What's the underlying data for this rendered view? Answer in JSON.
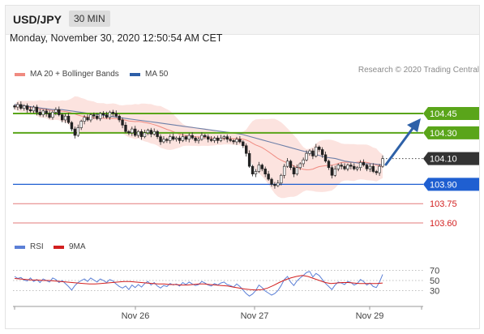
{
  "header": {
    "symbol": "USD/JPY",
    "timeframe": "30 MIN"
  },
  "timestamp": "Monday, November 30, 2020 12:50:54 AM CET",
  "legend": [
    {
      "label": "MA 20 + Bollinger Bands",
      "color": "#f08a80"
    },
    {
      "label": "MA 50",
      "color": "#2d5fa8"
    }
  ],
  "credit": "Research © 2020 Trading Central",
  "colors": {
    "support_resistance": "#5aa51a",
    "current_price": "#333333",
    "pivot": "#1f5fd1",
    "target": "#d21f1f",
    "arrow": "#2e61a8",
    "rsi": "#5b7fd6",
    "ma9": "#d21f1f"
  },
  "chart_data": [
    {
      "type": "line",
      "subtype": "candlestick",
      "x_labels": [
        "Nov 26",
        "Nov 27",
        "Nov 29"
      ],
      "price_levels": [
        {
          "value": "104.45",
          "kind": "resistance"
        },
        {
          "value": "104.30",
          "kind": "resistance"
        },
        {
          "value": "104.10",
          "kind": "current"
        },
        {
          "value": "103.90",
          "kind": "pivot"
        },
        {
          "value": "103.75",
          "kind": "support"
        },
        {
          "value": "103.60",
          "kind": "support"
        }
      ],
      "ylim": [
        103.55,
        104.62
      ],
      "series": [
        {
          "name": "Price",
          "values": [
            104.5,
            104.52,
            104.49,
            104.51,
            104.48,
            104.47,
            104.5,
            104.46,
            104.44,
            104.47,
            104.45,
            104.42,
            104.46,
            104.48,
            104.44,
            104.4,
            104.43,
            104.38,
            104.33,
            104.28,
            104.34,
            104.39,
            104.42,
            104.4,
            104.44,
            104.43,
            104.41,
            104.45,
            104.44,
            104.42,
            104.46,
            104.45,
            104.43,
            104.4,
            104.36,
            104.31,
            104.3,
            104.33,
            104.28,
            104.31,
            104.27,
            104.3,
            104.32,
            104.29,
            104.31,
            104.27,
            104.23,
            104.25,
            104.24,
            104.27,
            104.25,
            104.26,
            104.24,
            104.27,
            104.25,
            104.28,
            104.26,
            104.24,
            104.25,
            104.28,
            104.27,
            104.25,
            104.24,
            104.26,
            104.24,
            104.26,
            104.27,
            104.25,
            104.24,
            104.23,
            104.25,
            104.23,
            104.2,
            104.14,
            104.04,
            103.98,
            104.0,
            104.05,
            104.02,
            103.98,
            103.94,
            103.9,
            103.89,
            103.91,
            103.97,
            104.04,
            104.08,
            104.03,
            103.98,
            104.03,
            104.06,
            104.09,
            104.14,
            104.16,
            104.12,
            104.19,
            104.17,
            104.13,
            104.08,
            104.03,
            103.97,
            104.02,
            104.05,
            104.04,
            104.02,
            104.05,
            104.04,
            104.02,
            104.03,
            104.07,
            104.05,
            104.02,
            104.04,
            104.0,
            103.99,
            104.04,
            104.1
          ]
        },
        {
          "name": "MA 50",
          "values": [
            104.52,
            104.51,
            104.5,
            104.49,
            104.48,
            104.48,
            104.47,
            104.46,
            104.45,
            104.44,
            104.43,
            104.42,
            104.41,
            104.4,
            104.39,
            104.38,
            104.37,
            104.36,
            104.35,
            104.34,
            104.33,
            104.32,
            104.31,
            104.3,
            104.29,
            104.27,
            104.25,
            104.23,
            104.21,
            104.19,
            104.17,
            104.15,
            104.13,
            104.11,
            104.1,
            104.08,
            104.07,
            104.06,
            104.06,
            104.05
          ]
        }
      ]
    },
    {
      "type": "line",
      "title": "RSI",
      "ylim": [
        0,
        100
      ],
      "y_ticks": [
        "70",
        "50",
        "30"
      ],
      "series": [
        {
          "name": "RSI",
          "values": [
            58,
            54,
            56,
            51,
            49,
            55,
            48,
            52,
            46,
            53,
            50,
            47,
            55,
            52,
            46,
            50,
            44,
            38,
            31,
            40,
            46,
            50,
            53,
            48,
            55,
            51,
            47,
            53,
            50,
            46,
            52,
            49,
            43,
            38,
            35,
            39,
            32,
            41,
            36,
            42,
            37,
            44,
            48,
            41,
            46,
            39,
            35,
            40,
            38,
            44,
            41,
            43,
            39,
            46,
            42,
            47,
            43,
            40,
            42,
            48,
            45,
            41,
            39,
            44,
            41,
            45,
            47,
            42,
            40,
            37,
            43,
            38,
            31,
            24,
            19,
            23,
            30,
            41,
            36,
            29,
            25,
            21,
            24,
            30,
            40,
            52,
            58,
            47,
            40,
            49,
            55,
            60,
            66,
            68,
            57,
            64,
            60,
            52,
            44,
            38,
            32,
            41,
            47,
            45,
            42,
            48,
            46,
            41,
            44,
            52,
            48,
            41,
            45,
            38,
            36,
            47,
            62
          ]
        },
        {
          "name": "9MA",
          "values": [
            54,
            53,
            52,
            51,
            51,
            50,
            50,
            49,
            48,
            47,
            46,
            45,
            44,
            43,
            43,
            44,
            45,
            46,
            47,
            48,
            48,
            47,
            46,
            45,
            44,
            43,
            43,
            42,
            42,
            41,
            41,
            42,
            43,
            43,
            42,
            41,
            40,
            39,
            37,
            35,
            33,
            32,
            31,
            32,
            35,
            40,
            46,
            51,
            55,
            58,
            60,
            58,
            54,
            50,
            46,
            44,
            45,
            46,
            46,
            45,
            44,
            44,
            44,
            44,
            45
          ]
        }
      ]
    }
  ]
}
